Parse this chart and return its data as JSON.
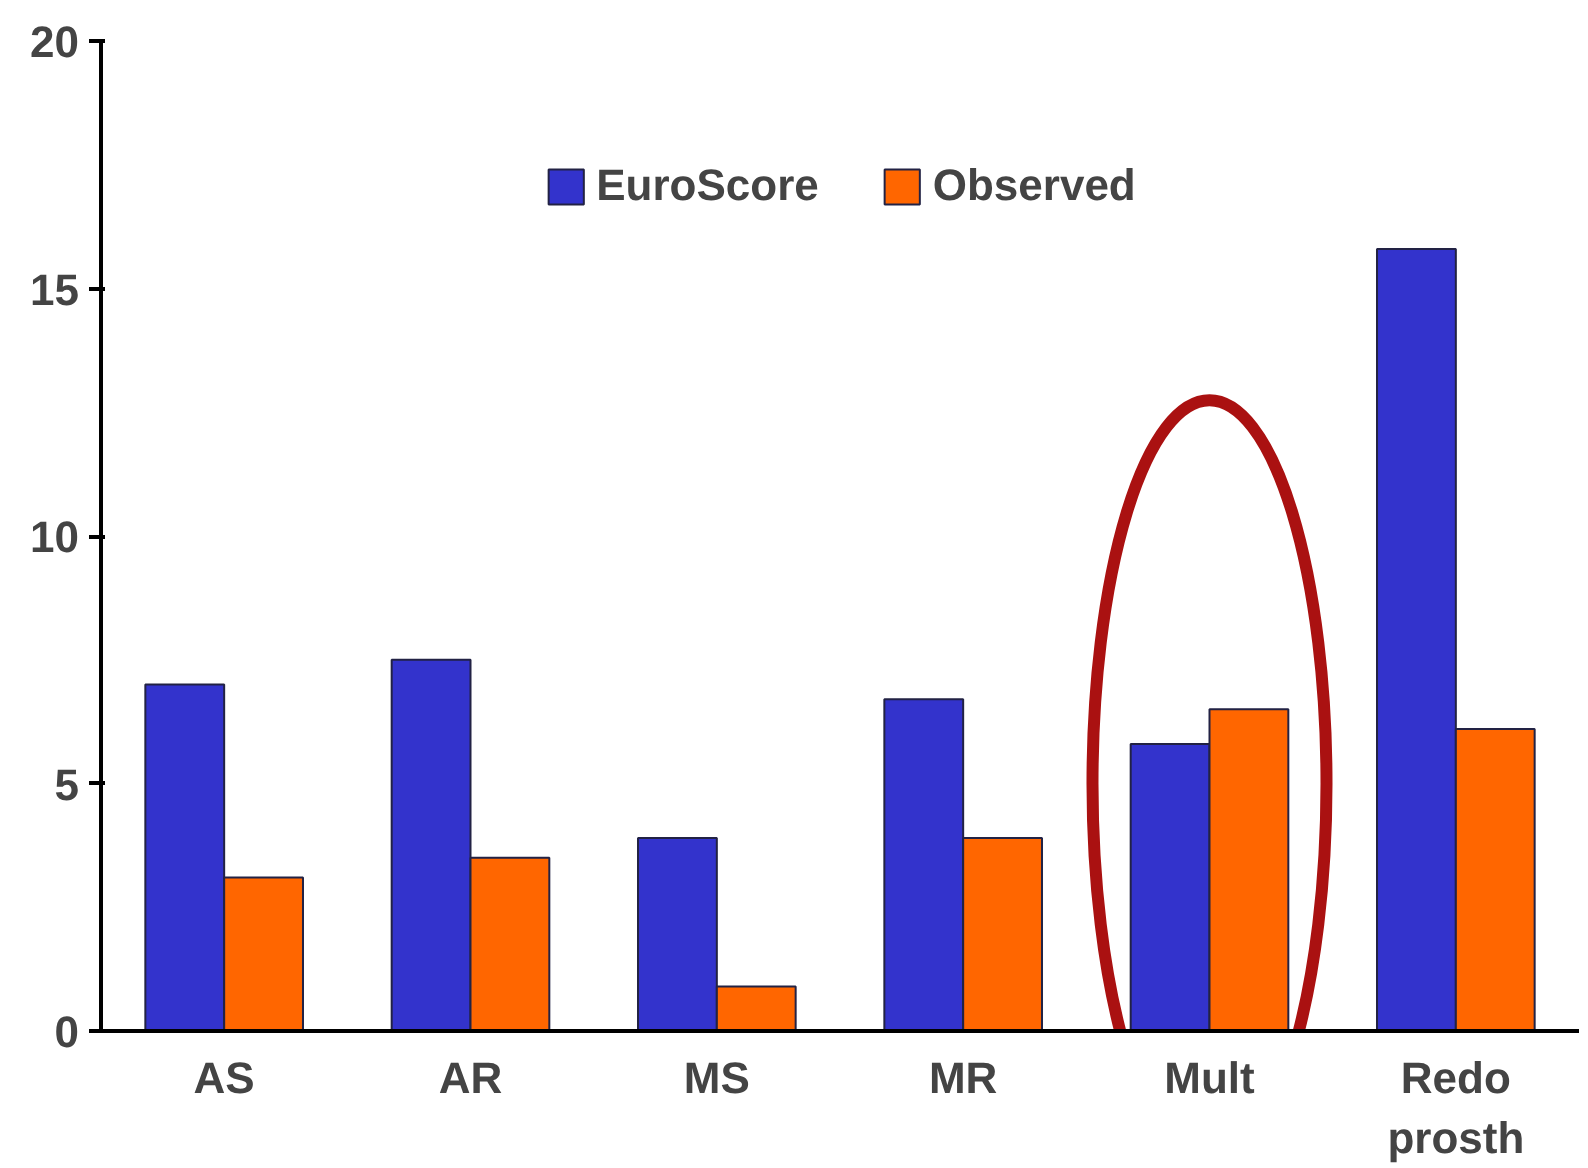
{
  "chart_data": {
    "type": "bar",
    "categories": [
      "AS",
      "AR",
      "MS",
      "MR",
      "Mult",
      "Redo\nprosth"
    ],
    "series": [
      {
        "name": "EuroScore",
        "color": "#3333cc",
        "values": [
          7.0,
          7.5,
          3.9,
          6.7,
          5.8,
          15.8
        ]
      },
      {
        "name": "Observed",
        "color": "#ff6600",
        "values": [
          3.1,
          3.5,
          0.9,
          3.9,
          6.5,
          6.1
        ]
      }
    ],
    "ylim": [
      0,
      20
    ],
    "yticks": [
      0,
      5,
      10,
      15,
      20
    ],
    "grid": false,
    "legend": "top"
  }
}
